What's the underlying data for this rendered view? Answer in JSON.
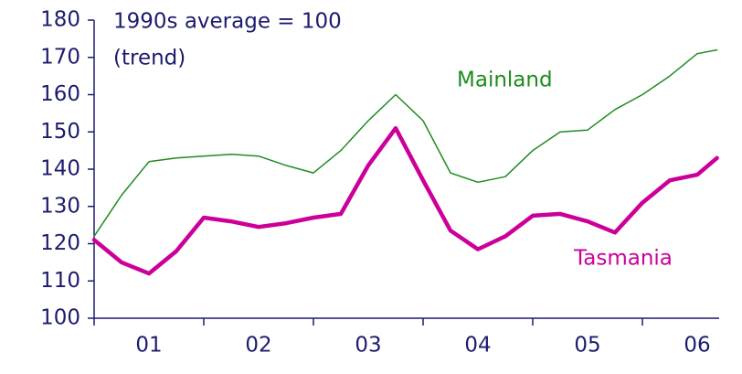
{
  "chart_data": {
    "type": "line",
    "annotations": [
      "1990s average = 100",
      "(trend)"
    ],
    "x": [
      1.0,
      1.25,
      1.5,
      1.75,
      2.0,
      2.25,
      2.5,
      2.75,
      3.0,
      3.25,
      3.5,
      3.75,
      4.0,
      4.25,
      4.5,
      4.75,
      5.0,
      5.25,
      5.5,
      5.75,
      6.0,
      6.25,
      6.5,
      6.68
    ],
    "series": [
      {
        "name": "Mainland",
        "color": "#1e8c1e",
        "width": 1.5,
        "values": [
          122,
          133,
          142,
          143,
          143.5,
          144,
          143.5,
          141,
          139,
          145,
          153,
          160,
          153,
          139,
          136.5,
          138,
          145,
          150,
          150.5,
          156,
          160,
          165,
          171,
          172
        ]
      },
      {
        "name": "Tasmania",
        "color": "#cc0099",
        "width": 4.5,
        "values": [
          121,
          115,
          112,
          118,
          127,
          126,
          124.5,
          125.5,
          127,
          128,
          141,
          151,
          137,
          123.5,
          118.5,
          122,
          127.5,
          128,
          126,
          123,
          131,
          137,
          138.5,
          143
        ]
      }
    ],
    "xlim": [
      1,
      6.7
    ],
    "xticks": [
      {
        "value": 1.5,
        "label": "01"
      },
      {
        "value": 2.5,
        "label": "02"
      },
      {
        "value": 3.5,
        "label": "03"
      },
      {
        "value": 4.5,
        "label": "04"
      },
      {
        "value": 5.5,
        "label": "05"
      },
      {
        "value": 6.5,
        "label": "06"
      }
    ],
    "ylim": [
      100,
      180
    ],
    "yticks": [
      100,
      110,
      120,
      130,
      140,
      150,
      160,
      170,
      180
    ],
    "grid": false
  }
}
